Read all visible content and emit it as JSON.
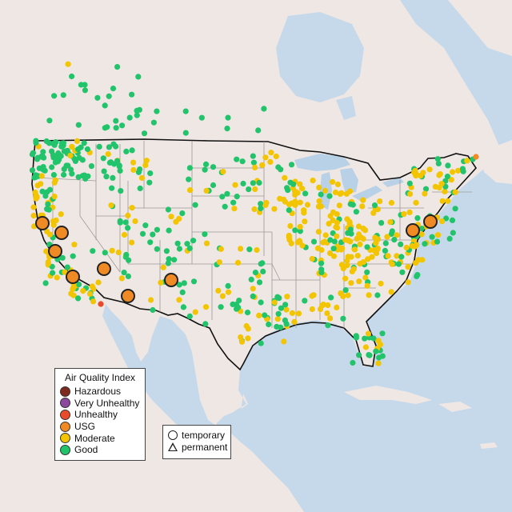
{
  "legend_aqi": {
    "title": "Air Quality Index",
    "items": [
      {
        "label": "Hazardous",
        "color": "#7e2a1e"
      },
      {
        "label": "Very Unhealthy",
        "color": "#8b4a9e"
      },
      {
        "label": "Unhealthy",
        "color": "#e84b2a"
      },
      {
        "label": "USG",
        "color": "#ef8a25"
      },
      {
        "label": "Moderate",
        "color": "#f2c500"
      },
      {
        "label": "Good",
        "color": "#22c46b"
      }
    ]
  },
  "legend_type": {
    "items": [
      {
        "label": "temporary",
        "shape": "circle"
      },
      {
        "label": "permanent",
        "shape": "triangle"
      }
    ]
  },
  "map": {
    "land_color": "#efe7e4",
    "water_color": "#c6d9ea",
    "lake_color": "#b8d1e6",
    "border_color": "#111111",
    "state_line_color": "#9a9a9a"
  }
}
